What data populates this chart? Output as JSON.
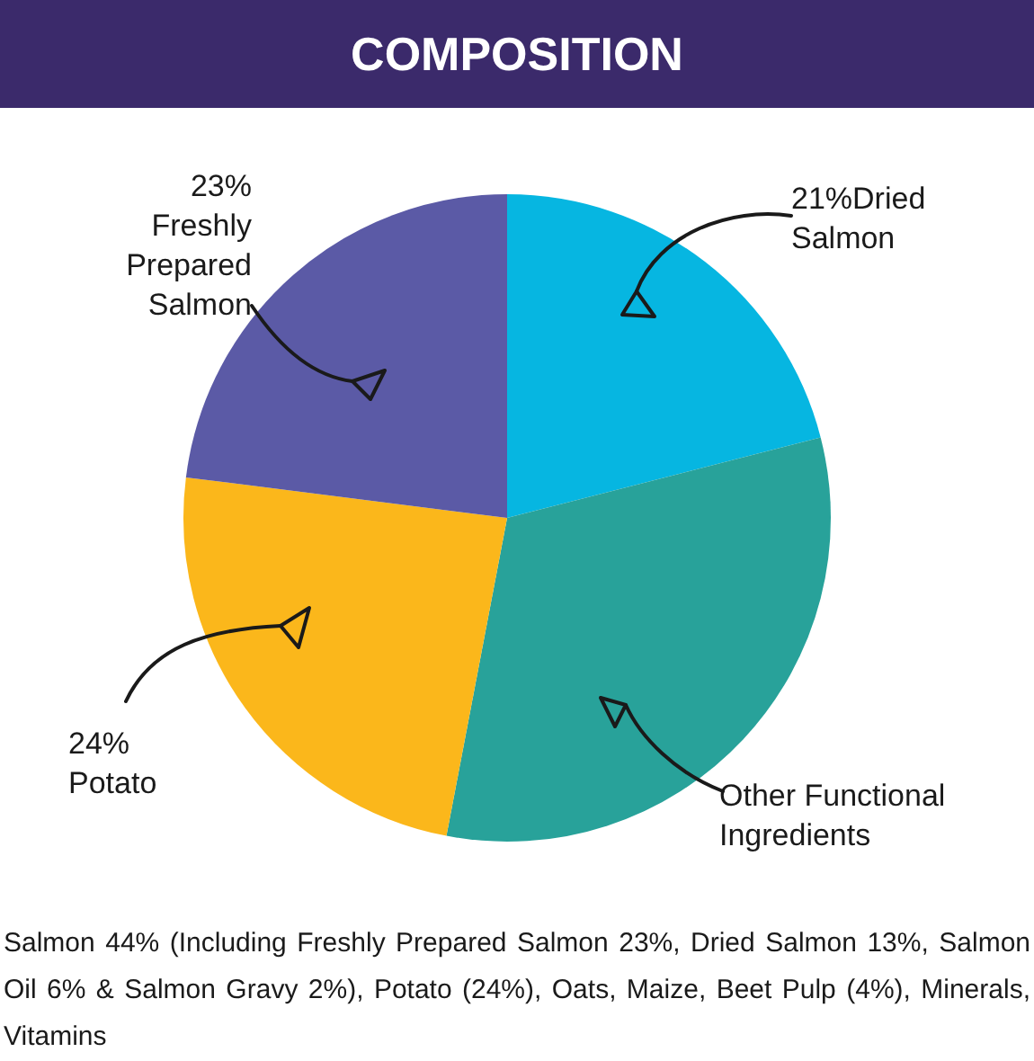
{
  "chart_data": {
    "type": "pie",
    "title": "COMPOSITION",
    "categories": [
      "Dried Salmon",
      "Other Functional Ingredients",
      "Potato",
      "Freshly Prepared Salmon"
    ],
    "values": [
      21,
      32,
      24,
      23
    ],
    "colors": [
      "#06b6e1",
      "#28a29a",
      "#fbb71b",
      "#5b5aa6"
    ],
    "value_labels": [
      "21%",
      null,
      "24%",
      "23%"
    ],
    "annotations": [
      "Salmon 44% (Including Freshly Prepared Salmon 23%, Dried Salmon 13%, Salmon Oil 6% & Salmon Gravy 2%), Potato (24%), Oats, Maize, Beet Pulp (4%), Minerals, Vitamins"
    ]
  }
}
